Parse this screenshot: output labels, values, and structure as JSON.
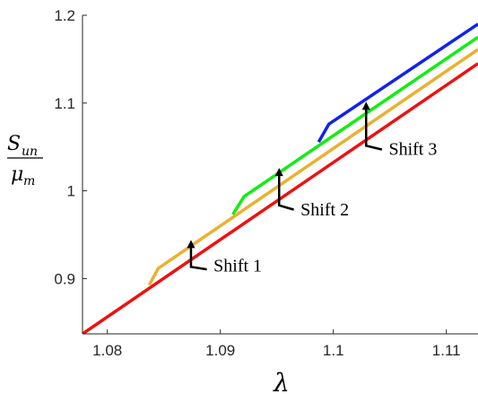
{
  "chart_data": {
    "type": "line",
    "xlabel": "λ",
    "ylabel": {
      "numerator": "S",
      "numerator_sub": "un",
      "denominator": "μ",
      "denominator_sub": "m"
    },
    "xlim": [
      1.0778,
      1.1128
    ],
    "ylim": [
      0.837,
      1.2
    ],
    "x_ticks": [
      1.08,
      1.09,
      1.1,
      1.11
    ],
    "x_tick_labels": [
      "1.08",
      "1.09",
      "1.1",
      "1.11"
    ],
    "y_ticks": [
      0.9,
      1.0,
      1.1,
      1.2
    ],
    "y_tick_labels": [
      "0.9",
      "1",
      "1.1",
      "1.2"
    ],
    "grid": false,
    "series": [
      {
        "color": "#EE1111",
        "x": [
          1.0778,
          1.1128
        ],
        "y": [
          0.837,
          1.145
        ]
      },
      {
        "color": "#EBB030",
        "x": [
          1.0837,
          1.0845,
          1.1128
        ],
        "y": [
          0.8925,
          0.9115,
          1.161
        ]
      },
      {
        "color": "#11EE11",
        "x": [
          1.0911,
          1.0921,
          1.1128
        ],
        "y": [
          0.973,
          0.9935,
          1.175
        ]
      },
      {
        "color": "#1122EE",
        "x": [
          1.0987,
          1.0996,
          1.1128
        ],
        "y": [
          1.0555,
          1.076,
          1.19
        ]
      }
    ],
    "annotations": [
      {
        "label": "Shift 1",
        "arrow_x": 1.0874,
        "arrow_y_from": 0.9195,
        "arrow_y_to": 0.944,
        "leader_end_x": 1.0888,
        "leader_end_y": 0.9105,
        "label_x": 1.0894,
        "label_y": 0.908
      },
      {
        "label": "Shift 2",
        "arrow_x": 1.0952,
        "arrow_y_from": 0.9895,
        "arrow_y_to": 1.026,
        "leader_end_x": 1.0965,
        "leader_end_y": 0.9785,
        "label_x": 1.0971,
        "label_y": 0.972
      },
      {
        "label": "Shift 3",
        "arrow_x": 1.1029,
        "arrow_y_from": 1.0575,
        "arrow_y_to": 1.1015,
        "leader_end_x": 1.1043,
        "leader_end_y": 1.047,
        "label_x": 1.1049,
        "label_y": 1.041
      }
    ]
  }
}
